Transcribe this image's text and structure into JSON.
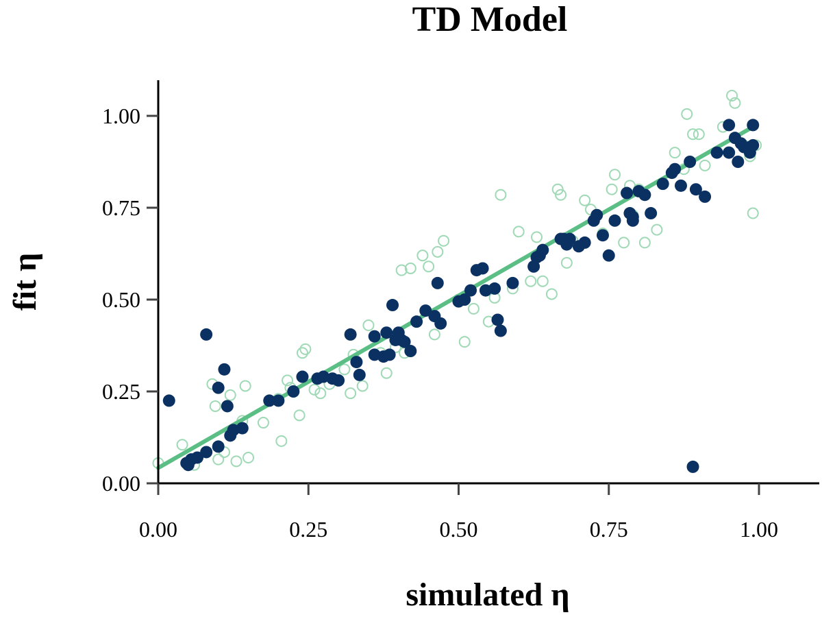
{
  "chart_data": {
    "type": "scatter",
    "title": "TD Model",
    "xlabel": "simulated η",
    "ylabel": "fit η",
    "xlim": [
      0.0,
      1.1
    ],
    "ylim": [
      -0.005,
      1.1
    ],
    "xticks": [
      "0.00",
      "0.25",
      "0.50",
      "0.75",
      "1.00"
    ],
    "yticks": [
      "0.00",
      "0.25",
      "0.50",
      "0.75",
      "1.00"
    ],
    "xtick_values": [
      0.0,
      0.25,
      0.5,
      0.75,
      1.0
    ],
    "ytick_values": [
      0.0,
      0.25,
      0.5,
      0.75,
      1.0
    ],
    "grid": false,
    "colors": {
      "filled": "#0a3161",
      "open": "#9fd9b5",
      "fit_line": "#5bbf85",
      "axis": "#000000",
      "tick": "#444444"
    },
    "fit_line": {
      "name": "fit",
      "x": [
        0.0,
        0.99
      ],
      "y": [
        0.042,
        0.97
      ]
    },
    "series": [
      {
        "name": "open",
        "marker": "open-circle",
        "x": [
          0.0,
          0.04,
          0.06,
          0.09,
          0.095,
          0.1,
          0.11,
          0.12,
          0.13,
          0.14,
          0.145,
          0.15,
          0.175,
          0.2,
          0.205,
          0.215,
          0.22,
          0.235,
          0.24,
          0.245,
          0.26,
          0.27,
          0.285,
          0.31,
          0.32,
          0.325,
          0.34,
          0.35,
          0.37,
          0.38,
          0.395,
          0.405,
          0.41,
          0.42,
          0.43,
          0.44,
          0.45,
          0.46,
          0.465,
          0.475,
          0.5,
          0.51,
          0.525,
          0.55,
          0.56,
          0.57,
          0.59,
          0.6,
          0.62,
          0.63,
          0.64,
          0.655,
          0.665,
          0.67,
          0.68,
          0.69,
          0.71,
          0.72,
          0.74,
          0.755,
          0.76,
          0.775,
          0.785,
          0.79,
          0.8,
          0.81,
          0.83,
          0.86,
          0.875,
          0.88,
          0.89,
          0.9,
          0.91,
          0.94,
          0.955,
          0.96,
          0.975,
          0.985,
          0.99,
          0.995
        ],
        "y": [
          0.055,
          0.105,
          0.05,
          0.27,
          0.21,
          0.065,
          0.085,
          0.24,
          0.06,
          0.17,
          0.265,
          0.07,
          0.165,
          0.23,
          0.115,
          0.28,
          0.26,
          0.185,
          0.355,
          0.365,
          0.255,
          0.245,
          0.27,
          0.31,
          0.245,
          0.35,
          0.265,
          0.43,
          0.355,
          0.3,
          0.37,
          0.58,
          0.355,
          0.585,
          0.44,
          0.62,
          0.59,
          0.405,
          0.63,
          0.66,
          0.5,
          0.385,
          0.475,
          0.44,
          0.505,
          0.785,
          0.53,
          0.685,
          0.55,
          0.67,
          0.55,
          0.515,
          0.8,
          0.785,
          0.6,
          0.66,
          0.77,
          0.745,
          0.68,
          0.8,
          0.84,
          0.655,
          0.81,
          0.73,
          0.8,
          0.655,
          0.69,
          0.9,
          0.855,
          1.005,
          0.95,
          0.95,
          0.865,
          0.97,
          1.055,
          1.035,
          0.92,
          0.89,
          0.735,
          0.92
        ]
      },
      {
        "name": "filled",
        "marker": "filled-circle",
        "x": [
          0.018,
          0.047,
          0.05,
          0.055,
          0.065,
          0.08,
          0.08,
          0.1,
          0.1,
          0.11,
          0.115,
          0.12,
          0.125,
          0.14,
          0.185,
          0.2,
          0.225,
          0.24,
          0.265,
          0.275,
          0.29,
          0.3,
          0.32,
          0.33,
          0.335,
          0.36,
          0.36,
          0.375,
          0.38,
          0.385,
          0.39,
          0.395,
          0.4,
          0.405,
          0.41,
          0.42,
          0.43,
          0.445,
          0.46,
          0.465,
          0.47,
          0.5,
          0.51,
          0.52,
          0.53,
          0.54,
          0.545,
          0.56,
          0.565,
          0.57,
          0.59,
          0.625,
          0.63,
          0.635,
          0.64,
          0.67,
          0.675,
          0.68,
          0.685,
          0.7,
          0.71,
          0.725,
          0.73,
          0.74,
          0.75,
          0.76,
          0.78,
          0.785,
          0.79,
          0.79,
          0.8,
          0.81,
          0.82,
          0.84,
          0.855,
          0.86,
          0.87,
          0.885,
          0.89,
          0.895,
          0.91,
          0.93,
          0.95,
          0.95,
          0.96,
          0.965,
          0.97,
          0.975,
          0.985,
          0.985,
          0.99,
          0.99
        ],
        "y": [
          0.225,
          0.055,
          0.05,
          0.065,
          0.07,
          0.405,
          0.085,
          0.26,
          0.1,
          0.31,
          0.21,
          0.13,
          0.145,
          0.15,
          0.225,
          0.225,
          0.25,
          0.29,
          0.285,
          0.29,
          0.285,
          0.28,
          0.405,
          0.33,
          0.295,
          0.4,
          0.35,
          0.345,
          0.41,
          0.35,
          0.485,
          0.39,
          0.41,
          0.39,
          0.385,
          0.36,
          0.44,
          0.47,
          0.455,
          0.545,
          0.435,
          0.495,
          0.5,
          0.525,
          0.58,
          0.585,
          0.525,
          0.53,
          0.445,
          0.415,
          0.545,
          0.59,
          0.615,
          0.62,
          0.635,
          0.665,
          0.665,
          0.65,
          0.665,
          0.645,
          0.655,
          0.715,
          0.73,
          0.675,
          0.62,
          0.715,
          0.79,
          0.735,
          0.725,
          0.715,
          0.795,
          0.785,
          0.735,
          0.815,
          0.845,
          0.855,
          0.81,
          0.875,
          0.045,
          0.8,
          0.78,
          0.9,
          0.9,
          0.975,
          0.94,
          0.875,
          0.925,
          0.915,
          0.915,
          0.9,
          0.975,
          0.92
        ]
      }
    ]
  }
}
